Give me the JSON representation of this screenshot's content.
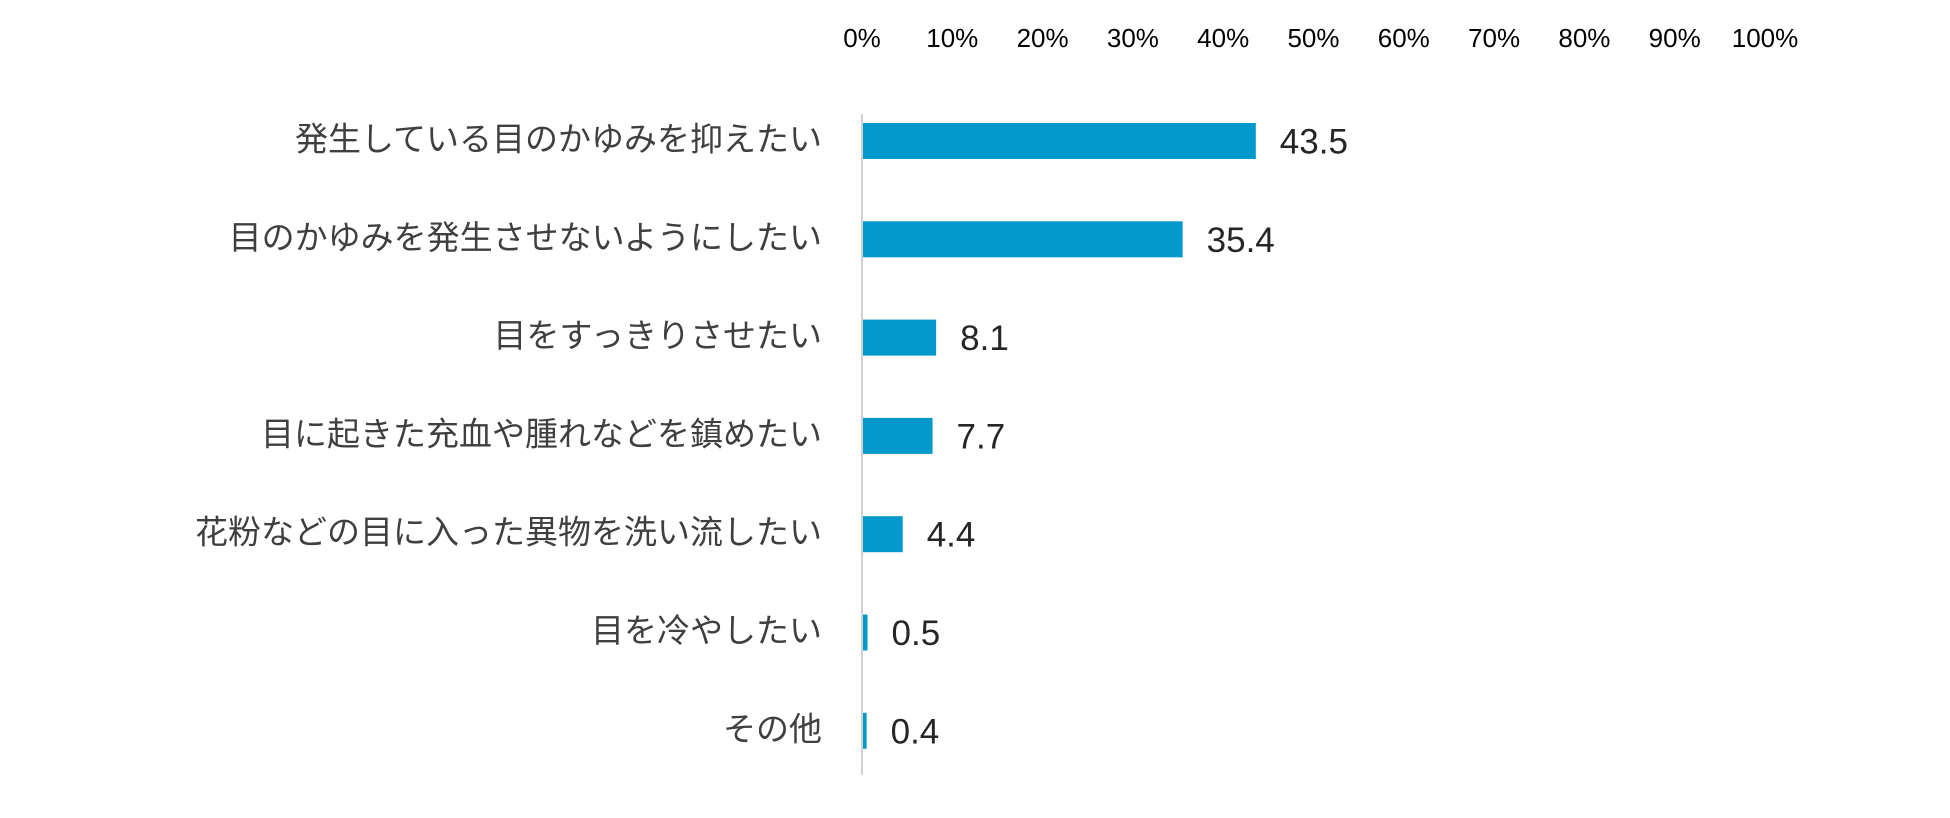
{
  "chart_data": {
    "type": "bar",
    "orientation": "horizontal",
    "categories": [
      "発生している目のかゆみを抑えたい",
      "目のかゆみを発生させないようにしたい",
      "目をすっきりさせたい",
      "目に起きた充血や腫れなどを鎮めたい",
      "花粉などの目に入った異物を洗い流したい",
      "目を冷やしたい",
      "その他"
    ],
    "values": [
      43.5,
      35.4,
      8.1,
      7.7,
      4.4,
      0.5,
      0.4
    ],
    "value_labels": [
      "43.5",
      "35.4",
      "8.1",
      "7.7",
      "4.4",
      "0.5",
      "0.4"
    ],
    "x_ticks": [
      "0%",
      "10%",
      "20%",
      "30%",
      "40%",
      "50%",
      "60%",
      "70%",
      "80%",
      "90%",
      "100%"
    ],
    "xlim": [
      0,
      100
    ],
    "x_axis_position": "top",
    "grid": false,
    "legend": "none",
    "bar_color": "#0399CC",
    "axis_color": "#D0D0D0"
  }
}
